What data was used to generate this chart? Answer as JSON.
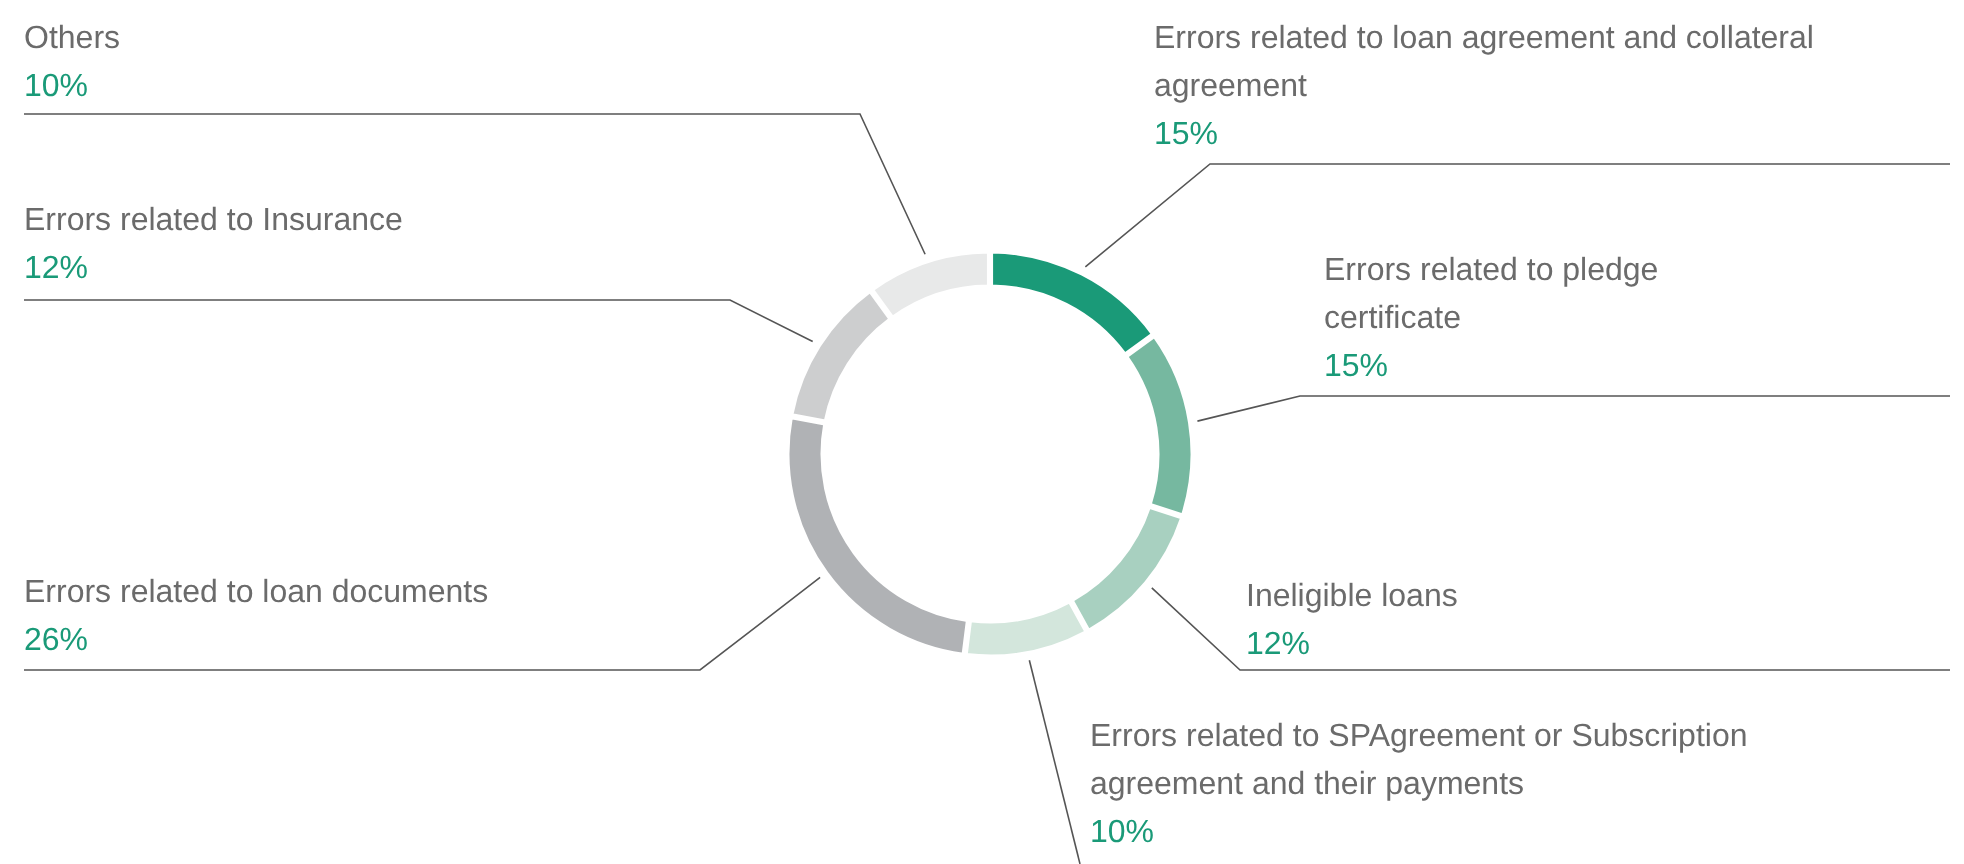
{
  "chart_data": {
    "type": "donut",
    "categories": [
      "Errors related to loan agreement and collateral agreement",
      "Errors related to pledge certificate",
      "Ineligible loans",
      "Errors related to SPAgreement or Subscription agreement and their payments",
      "Errors related to loan documents",
      "Errors related to Insurance",
      "Others"
    ],
    "values": [
      15,
      15,
      12,
      10,
      26,
      12,
      10
    ],
    "colors": [
      "#1a9a78",
      "#76b8a0",
      "#a8d0c0",
      "#d3e6dc",
      "#b0b2b5",
      "#cdcecf",
      "#e8e9e9"
    ],
    "value_labels": [
      "15%",
      "15%",
      "12%",
      "10%",
      "26%",
      "12%",
      "10%"
    ]
  }
}
